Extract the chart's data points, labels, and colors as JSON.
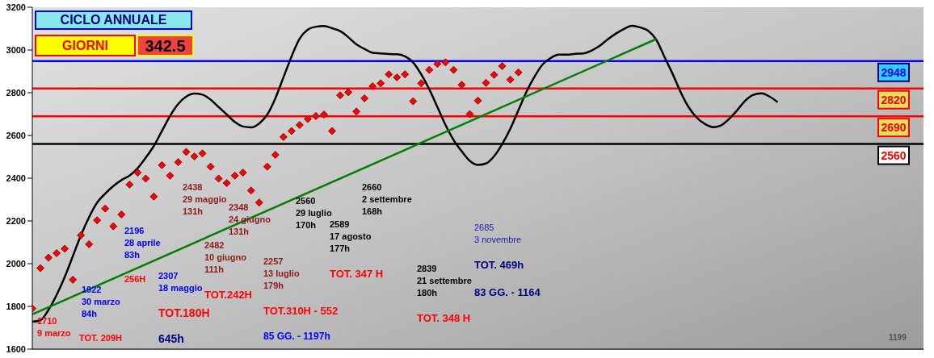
{
  "chart_data": {
    "type": "line",
    "categories": [
      null,
      null,
      null,
      null,
      null,
      null,
      null,
      null,
      null,
      null,
      null,
      null,
      null,
      null,
      null,
      null,
      null,
      null,
      null,
      null,
      null,
      null,
      null,
      null,
      null,
      null,
      null,
      null,
      null,
      null,
      null,
      null,
      null,
      null,
      null,
      null,
      null,
      null,
      null,
      null,
      null,
      null,
      null,
      null,
      null,
      null,
      null,
      null,
      null,
      null,
      null,
      null,
      null,
      null,
      null,
      null,
      null,
      null,
      null,
      null,
      null,
      null,
      null,
      null,
      null,
      null,
      null,
      null,
      null,
      null,
      null,
      null,
      null,
      null,
      null,
      null,
      null,
      null,
      null,
      null,
      null,
      null,
      null,
      null,
      null,
      null,
      null,
      null,
      null,
      null,
      null,
      null,
      null,
      null,
      null,
      null,
      null,
      null,
      null,
      null,
      null,
      null,
      null,
      null,
      null,
      null,
      null,
      null,
      null,
      null,
      null
    ],
    "series": [
      {
        "type": "scatter",
        "color": "#ff0000",
        "marker": "diamond",
        "values": [
          1790,
          1979,
          2028,
          2049,
          2070,
          1925,
          2133,
          2091,
          2203,
          2258,
          2175,
          2230,
          2370,
          2426,
          2398,
          2314,
          2461,
          2412,
          2475,
          2523,
          2502,
          2516,
          2454,
          2398,
          2377,
          2412,
          2426,
          2342,
          2286,
          2454,
          2509,
          2593,
          2621,
          2649,
          2677,
          2691,
          2698,
          2621,
          2788,
          2802,
          2712,
          2774,
          2830,
          2844,
          2886,
          2872,
          2886,
          2760,
          2844,
          2907,
          2935,
          2942,
          2907,
          2837,
          2700,
          2763,
          2846,
          2884,
          2925,
          2861,
          2895,
          null,
          null,
          null,
          null,
          null,
          null,
          null,
          null,
          null,
          null,
          null,
          null,
          null,
          null,
          null,
          null,
          null,
          null,
          null,
          null,
          null,
          null,
          null,
          null,
          null,
          null,
          null,
          null,
          null,
          null,
          null,
          null,
          null,
          null,
          null,
          null,
          null,
          null,
          null,
          null,
          null,
          null,
          null,
          null,
          null,
          null,
          null,
          null,
          null,
          null
        ]
      },
      {
        "color": "#000000",
        "marker": "none",
        "line_style": "solid",
        "values": [
          1728,
          1735,
          1784,
          1854,
          1938,
          2035,
          2133,
          2217,
          2286,
          2328,
          2363,
          2391,
          2412,
          2447,
          2496,
          2551,
          2621,
          2691,
          2747,
          2782,
          2796,
          2791,
          2768,
          2733,
          2698,
          2663,
          2642,
          2638,
          2656,
          2698,
          2774,
          2872,
          2970,
          3053,
          3095,
          3109,
          3112,
          3102,
          3088,
          3060,
          3026,
          3005,
          2987,
          2984,
          2981,
          2980,
          2970,
          2942,
          2886,
          2816,
          2733,
          2649,
          2579,
          2526,
          2481,
          2462,
          2469,
          2503,
          2560,
          2631,
          2718,
          2805,
          2876,
          2933,
          2963,
          2978,
          2978,
          2982,
          2984,
          2997,
          3019,
          3049,
          3076,
          3098,
          3113,
          3106,
          3091,
          3049,
          2970,
          2891,
          2805,
          2733,
          2684,
          2654,
          2639,
          2647,
          2677,
          2718,
          2763,
          2790,
          2797,
          2782,
          2756,
          null,
          null,
          null,
          null,
          null,
          null,
          null,
          null,
          null,
          null,
          null,
          null,
          null,
          null,
          null,
          null,
          null,
          null
        ]
      },
      {
        "color": "#008000",
        "marker": "none",
        "line_style": "solid",
        "values": [
          1763,
          null,
          null,
          null,
          null,
          null,
          null,
          null,
          null,
          null,
          null,
          null,
          null,
          null,
          null,
          null,
          null,
          null,
          null,
          null,
          null,
          null,
          null,
          null,
          null,
          null,
          null,
          null,
          null,
          null,
          null,
          null,
          null,
          null,
          null,
          null,
          null,
          null,
          null,
          null,
          null,
          null,
          null,
          null,
          null,
          null,
          null,
          null,
          null,
          null,
          null,
          null,
          null,
          null,
          null,
          null,
          null,
          null,
          null,
          null,
          null,
          null,
          null,
          null,
          null,
          null,
          null,
          null,
          null,
          null,
          null,
          null,
          null,
          null,
          null,
          null,
          null,
          3051,
          null,
          null,
          null,
          null,
          null,
          null,
          null,
          null,
          null,
          null,
          null,
          null,
          null,
          null,
          null,
          null,
          null,
          null,
          null,
          null,
          null,
          null,
          null,
          null,
          null,
          null,
          null,
          null,
          null,
          null,
          null,
          null,
          null
        ]
      }
    ],
    "ylim": [
      1600,
      3200
    ],
    "yticks": [
      1600,
      1800,
      2000,
      2200,
      2400,
      2600,
      2800,
      3000,
      3200
    ],
    "tick_labels": "y",
    "ref_lines": [
      {
        "axis": "y",
        "value": 2948,
        "label": "2948",
        "color": "#0000ff"
      },
      {
        "axis": "y",
        "value": 2820,
        "label": "2820",
        "color": "#ff0000"
      },
      {
        "axis": "y",
        "value": 2690,
        "label": "2690",
        "color": "#ff0000"
      },
      {
        "axis": "y",
        "value": 2560,
        "label": "2560",
        "color": "#000000"
      }
    ],
    "annotations": [
      "CICLO ANNUALE",
      "GIORNI",
      "342.5",
      "1710\n9 marzo",
      "TOT. 209H",
      "1922\n30 marzo\n84h",
      "2196\n28 aprile\n83h",
      "256H",
      "2307\n18 maggio",
      "TOT.180H",
      "645h",
      "2438\n29 maggio\n131h",
      "2482\n10 giugno\n111h",
      "TOT.242H",
      "2348\n24 giugno\n131h",
      "2257\n13 luglio\n179h",
      "TOT.310H - 552",
      "85 GG. - 1197h",
      "2560\n29 luglio\n170h",
      "2589\n17 agosto\n177h",
      "TOT. 347 H",
      "2660\n2 settembre\n168h",
      "2839\n21 settembre\n180h",
      "TOT. 348 H",
      "2685\n3 novembre",
      "TOT. 469h",
      "83 GG. - 1164",
      "1199"
    ]
  }
}
